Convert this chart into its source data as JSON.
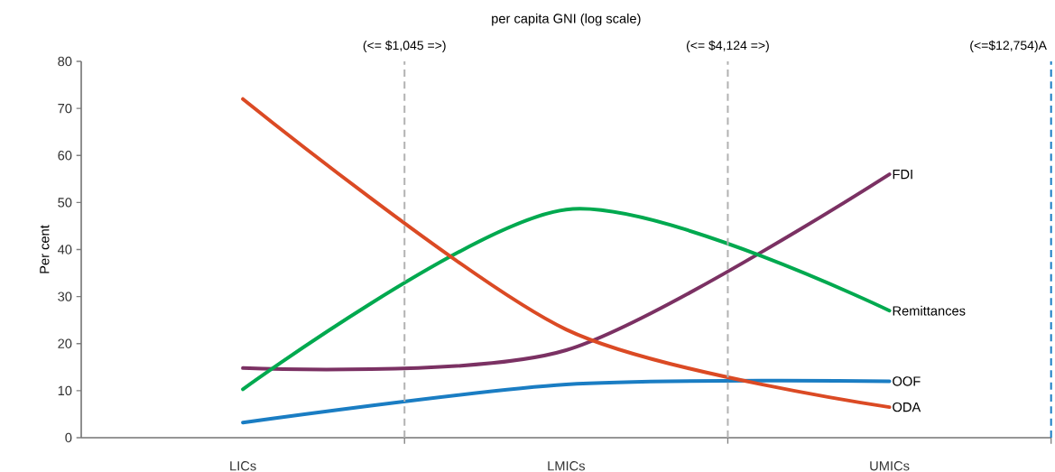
{
  "chart_data": {
    "type": "line",
    "title": "per capita GNI (log scale)",
    "ylabel": "Per cent",
    "categories": [
      "LICs",
      "LMICs",
      "UMICs"
    ],
    "series": [
      {
        "name": "FDI",
        "color": "#7b3163",
        "values": [
          14.8,
          18.6,
          56
        ]
      },
      {
        "name": "Remittances",
        "color": "#00a94f",
        "values": [
          10.3,
          48.5,
          27
        ]
      },
      {
        "name": "OOF",
        "color": "#1a7dc3",
        "values": [
          3.2,
          11.3,
          12
        ]
      },
      {
        "name": "ODA",
        "color": "#db4a24",
        "values": [
          72,
          23,
          6.5
        ]
      }
    ],
    "ylim": [
      0,
      80
    ],
    "yticks": [
      0,
      10,
      20,
      30,
      40,
      50,
      60,
      70,
      80
    ],
    "annotations": [
      "(<= $1,045 =>)",
      "(<= $4,124 =>)",
      "(<=$12,754)A"
    ],
    "grid": false,
    "legend": false,
    "marker": "none",
    "line_style": "solid"
  }
}
